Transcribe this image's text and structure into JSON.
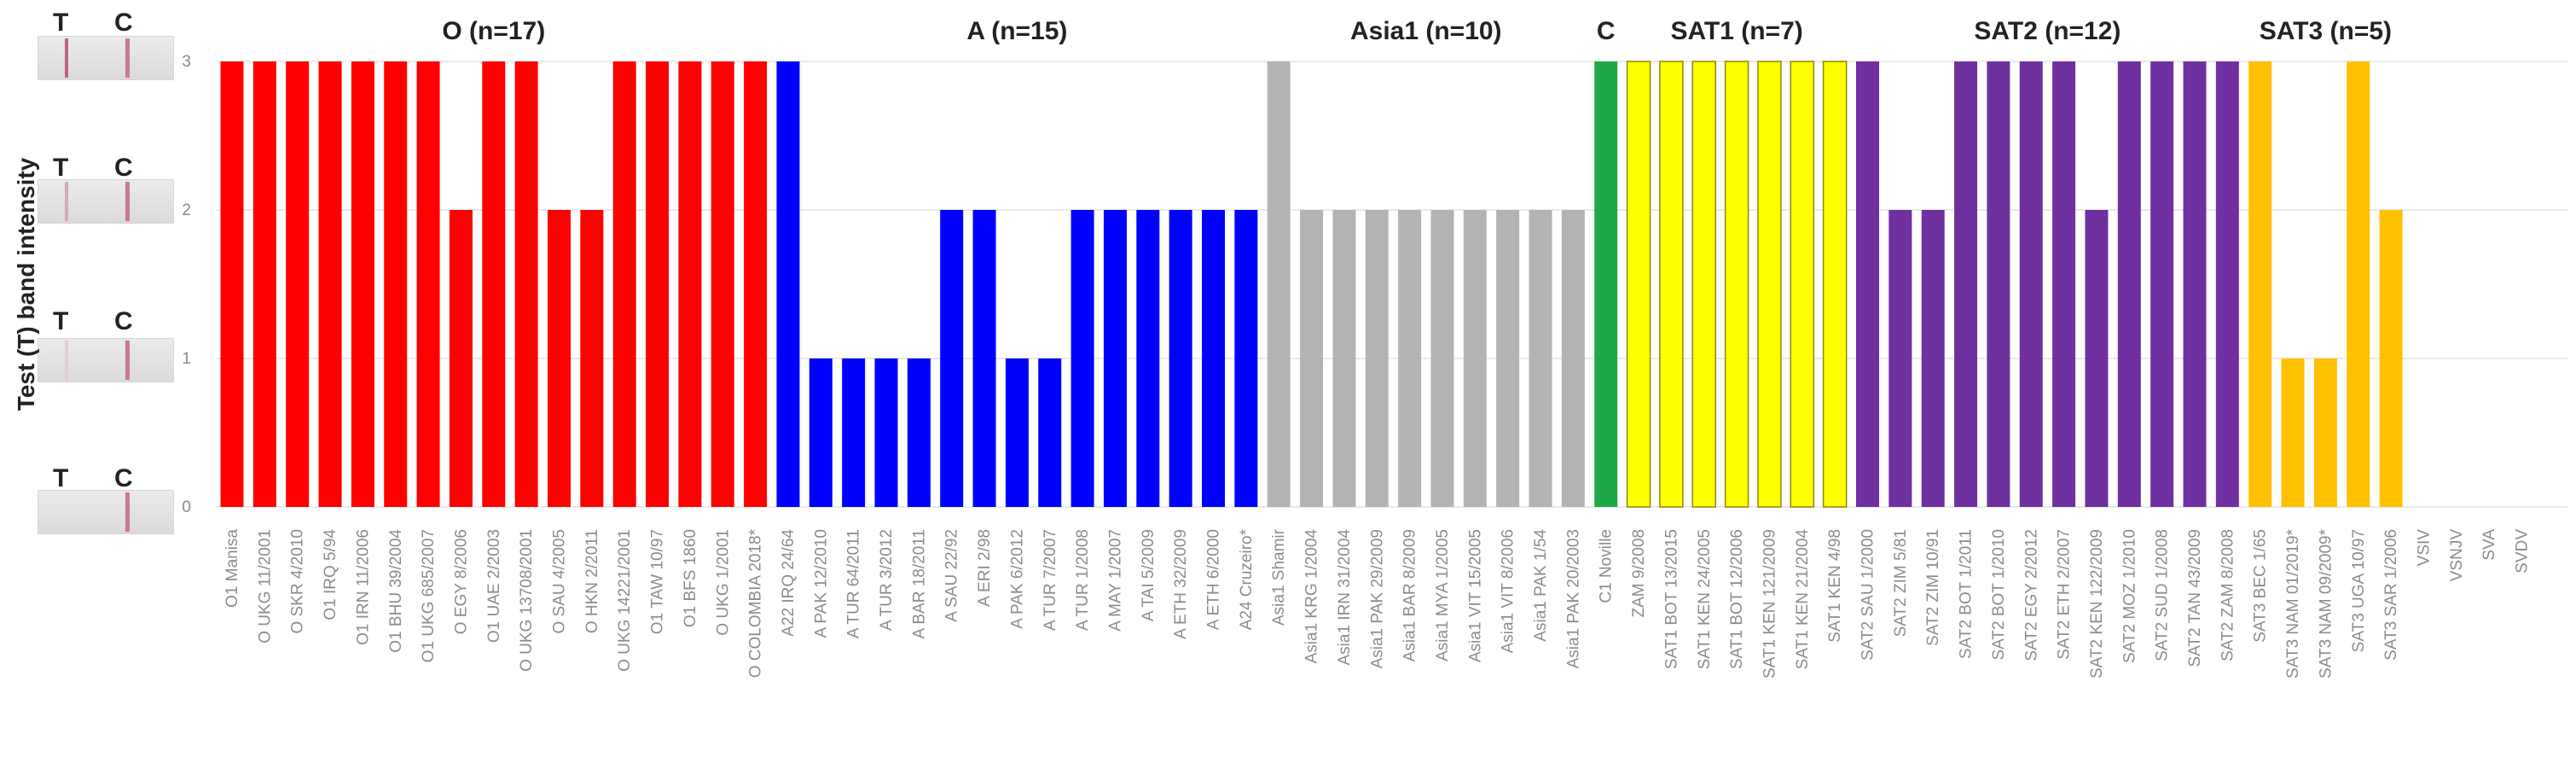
{
  "chart_data": {
    "type": "bar",
    "ylabel": "Test (T) band intensity",
    "ylim": [
      0,
      3
    ],
    "yticks": [
      "0",
      "1",
      "2",
      "3"
    ],
    "grid": true,
    "strip_labels": {
      "test": "T",
      "control": "C"
    },
    "groups": [
      {
        "label": "O (n=17)",
        "color": "#ff0000",
        "categories": [
          "O1 Manisa",
          "O UKG 11/2001",
          "O SKR 4/2010",
          "O1 IRQ 5/94",
          "O1 IRN 11/2006",
          "O1 BHU 39/2004",
          "O1 UKG 685/2007",
          "O EGY 8/2006",
          "O1 UAE 2/2003",
          "O UKG 13708/2001",
          "O SAU 4/2005",
          "O HKN 2/2011",
          "O UKG 14221/2001",
          "O1 TAW 10/97",
          "O1 BFS 1860",
          "O UKG 1/2001",
          "O COLOMBIA 2018*"
        ],
        "values": [
          3,
          3,
          3,
          3,
          3,
          3,
          3,
          2,
          3,
          3,
          2,
          2,
          3,
          3,
          3,
          3,
          3
        ]
      },
      {
        "label": "A (n=15)",
        "color": "#0000ff",
        "categories": [
          "A22 IRQ 24/64",
          "A PAK 12/2010",
          "A TUR 64/2011",
          "A TUR 3/2012",
          "A BAR 18/2011",
          "A SAU 22/92",
          "A ERI 2/98",
          "A PAK 6/2012",
          "A TUR 7/2007",
          "A TUR 1/2008",
          "A MAY 1/2007",
          "A TAI 5/2009",
          "A ETH 32/2009",
          "A ETH 6/2000",
          "A24 Cruzeiro*"
        ],
        "values": [
          3,
          1,
          1,
          1,
          1,
          2,
          2,
          1,
          1,
          2,
          2,
          2,
          2,
          2,
          2
        ]
      },
      {
        "label": "Asia1 (n=10)",
        "color": "#b3b3b3",
        "categories": [
          "Asia1 Shamir",
          "Asia1 KRG 1/2004",
          "Asia1 IRN 31/2004",
          "Asia1 PAK 29/2009",
          "Asia1 BAR 8/2009",
          "Asia1 MYA 1/2005",
          "Asia1 VIT 15/2005",
          "Asia1 VIT 8/2006",
          "Asia1 PAK 1/54",
          "Asia1 PAK 20/2003"
        ],
        "values": [
          3,
          2,
          2,
          2,
          2,
          2,
          2,
          2,
          2,
          2
        ]
      },
      {
        "label": "C",
        "color": "#1fa84a",
        "categories": [
          "C1 Noville"
        ],
        "values": [
          3
        ]
      },
      {
        "label": "SAT1 (n=7)",
        "color": "#ffff00",
        "outline": "#8a8a00",
        "categories": [
          "ZAM 9/2008",
          "SAT1 BOT 13/2015",
          "SAT1 KEN 24/2005",
          "SAT1 BOT 12/2006",
          "SAT1 KEN 121/2009",
          "SAT1 KEN 21/2004",
          "SAT1 KEN 4/98"
        ],
        "values": [
          3,
          3,
          3,
          3,
          3,
          3,
          3
        ]
      },
      {
        "label": "SAT2 (n=12)",
        "color": "#7030a0",
        "categories": [
          "SAT2 SAU 1/2000",
          "SAT2 ZIM 5/81",
          "SAT2 ZIM 10/91",
          "SAT2 BOT 1/2011",
          "SAT2 BOT 1/2010",
          "SAT2 EGY 2/2012",
          "SAT2 ETH 2/2007",
          "SAT2 KEN 122/2009",
          "SAT2 MOZ 1/2010",
          "SAT2 SUD 1/2008",
          "SAT2 TAN 43/2009",
          "SAT2 ZAM 8/2008"
        ],
        "values": [
          3,
          2,
          2,
          3,
          3,
          3,
          3,
          2,
          3,
          3,
          3,
          3
        ]
      },
      {
        "label": "SAT3 (n=5)",
        "color": "#ffc000",
        "categories": [
          "SAT3 BEC 1/65",
          "SAT3 NAM 01/2019*",
          "SAT3 NAM 09/2009*",
          "SAT3 UGA 10/97",
          "SAT3 SAR 1/2006"
        ],
        "values": [
          3,
          1,
          1,
          3,
          2
        ]
      },
      {
        "label": "",
        "color": "#999999",
        "categories": [
          "VSIV",
          "VSNJV",
          "SVA",
          "SVDV"
        ],
        "values": [
          0,
          0,
          0,
          0
        ]
      }
    ]
  }
}
